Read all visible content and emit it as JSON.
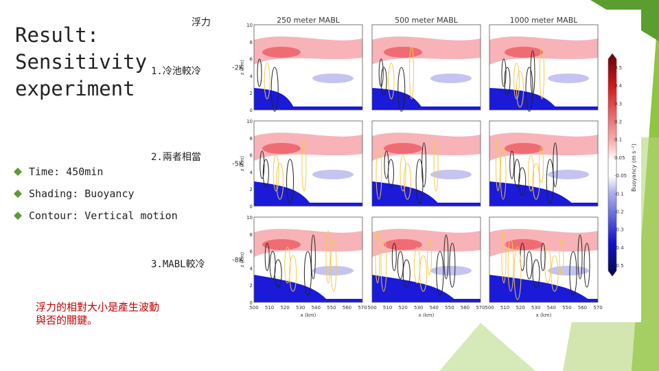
{
  "title_lines": [
    "Result:",
    "Sensitivity",
    "experiment"
  ],
  "bullets": [
    "Time: 450min",
    "Shading: Buoyancy",
    "Contour: Vertical motion"
  ],
  "annotations": {
    "buoyancy_note": "浮力",
    "row_notes": [
      "1.冷池較冷",
      "2.兩者相當",
      "3.MABL較冷"
    ],
    "conclusion_lines": [
      "浮力的相對大小是產生波動",
      "與否的關鍵。"
    ]
  },
  "figure": {
    "column_titles": [
      "250 meter MABL",
      "500 meter MABL",
      "1000 meter MABL"
    ],
    "row_labels": [
      "-2K",
      "-5K",
      "-8K"
    ],
    "y_axis_label": "z (km)",
    "y_ticks": [
      "10",
      "8",
      "6",
      "4",
      "2",
      "0"
    ],
    "x_axis_label": "x (km)",
    "x_ticks": [
      "500",
      "510",
      "520",
      "530",
      "540",
      "550",
      "560",
      "570"
    ],
    "colorbar": {
      "label": "Buoyancy (m s⁻²)",
      "ticks": [
        "0.5",
        "0.4",
        "0.3",
        "0.2",
        "0.1",
        "0.05",
        "-0.05",
        "-0.1",
        "-0.2",
        "-0.3",
        "-0.4",
        "-0.5"
      ]
    }
  }
}
